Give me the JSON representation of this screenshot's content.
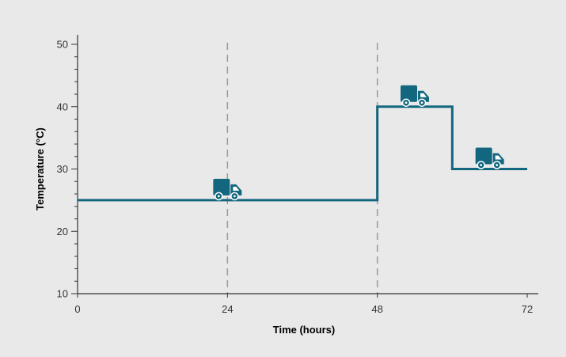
{
  "chart_data": {
    "type": "line",
    "xlabel": "Time (hours)",
    "ylabel": "Temperature (°C)",
    "xlim": [
      0,
      72
    ],
    "ylim": [
      10,
      50
    ],
    "x_ticks": [
      0,
      24,
      48,
      72
    ],
    "y_ticks": [
      10,
      20,
      30,
      40,
      50
    ],
    "y_minor_step": 2,
    "grid": false,
    "vertical_reference_lines": [
      24,
      48
    ],
    "series": [
      {
        "step": true,
        "color": "#12667e",
        "x": [
          0,
          48,
          48,
          60,
          60,
          72
        ],
        "y": [
          25,
          25,
          40,
          40,
          30,
          30
        ]
      }
    ],
    "markers": [
      {
        "icon": "delivery-truck-icon",
        "x": 24,
        "y": 25
      },
      {
        "icon": "delivery-truck-icon",
        "x": 54,
        "y": 40
      },
      {
        "icon": "delivery-truck-icon",
        "x": 66,
        "y": 30
      }
    ],
    "colors": {
      "background": "#e9e9e9",
      "line": "#12667e",
      "axis": "#333333",
      "reference_line": "#999999"
    }
  }
}
